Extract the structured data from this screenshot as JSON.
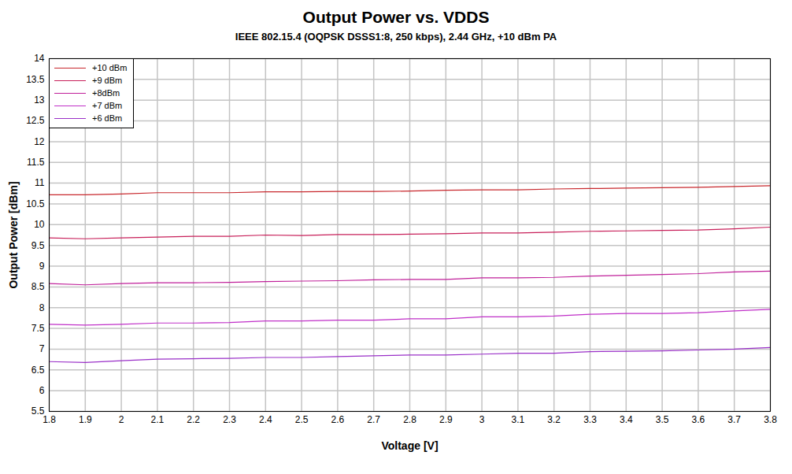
{
  "chart_data": {
    "type": "line",
    "title": "Output Power vs. VDDS",
    "subtitle": "IEEE 802.15.4 (OQPSK DSSS1:8, 250 kbps), 2.44 GHz, +10 dBm PA",
    "x_label": "Voltage [V]",
    "y_label": "Output Power [dBm]",
    "x": [
      1.8,
      1.9,
      2.0,
      2.1,
      2.2,
      2.3,
      2.4,
      2.5,
      2.6,
      2.7,
      2.8,
      2.9,
      3.0,
      3.1,
      3.2,
      3.3,
      3.4,
      3.5,
      3.6,
      3.7,
      3.8
    ],
    "series": [
      {
        "name": "+10 dBm",
        "color": "#c8282d",
        "values": [
          10.72,
          10.72,
          10.74,
          10.77,
          10.77,
          10.77,
          10.79,
          10.79,
          10.8,
          10.8,
          10.81,
          10.83,
          10.84,
          10.84,
          10.86,
          10.87,
          10.88,
          10.89,
          10.9,
          10.92,
          10.94
        ]
      },
      {
        "name": "+9 dBm",
        "color": "#c8205a",
        "values": [
          9.68,
          9.66,
          9.68,
          9.7,
          9.72,
          9.72,
          9.75,
          9.74,
          9.76,
          9.76,
          9.77,
          9.78,
          9.8,
          9.8,
          9.82,
          9.84,
          9.85,
          9.86,
          9.87,
          9.9,
          9.94
        ]
      },
      {
        "name": "+8dBm",
        "color": "#c0209a",
        "values": [
          8.58,
          8.55,
          8.58,
          8.6,
          8.6,
          8.61,
          8.63,
          8.64,
          8.65,
          8.67,
          8.68,
          8.68,
          8.72,
          8.72,
          8.73,
          8.76,
          8.78,
          8.8,
          8.82,
          8.86,
          8.88
        ]
      },
      {
        "name": "+7 dBm",
        "color": "#c030c8",
        "values": [
          7.6,
          7.58,
          7.6,
          7.63,
          7.63,
          7.64,
          7.68,
          7.68,
          7.7,
          7.7,
          7.73,
          7.73,
          7.78,
          7.78,
          7.8,
          7.84,
          7.86,
          7.86,
          7.88,
          7.92,
          7.96
        ]
      },
      {
        "name": "+6 dBm",
        "color": "#9a30c8",
        "values": [
          6.7,
          6.68,
          6.72,
          6.76,
          6.77,
          6.78,
          6.8,
          6.8,
          6.82,
          6.84,
          6.86,
          6.86,
          6.88,
          6.9,
          6.9,
          6.94,
          6.95,
          6.96,
          6.98,
          7.0,
          7.04
        ]
      }
    ],
    "xlim": [
      1.8,
      3.8
    ],
    "xticks": [
      1.8,
      1.9,
      2,
      2.1,
      2.2,
      2.3,
      2.4,
      2.5,
      2.6,
      2.7,
      2.8,
      2.9,
      3,
      3.1,
      3.2,
      3.3,
      3.4,
      3.5,
      3.6,
      3.7,
      3.8
    ],
    "ylim": [
      5.5,
      14
    ],
    "yticks": [
      5.5,
      6,
      6.5,
      7,
      7.5,
      8,
      8.5,
      9,
      9.5,
      10,
      10.5,
      11,
      11.5,
      12,
      12.5,
      13,
      13.5,
      14
    ],
    "grid": true,
    "legend": "upper left"
  }
}
